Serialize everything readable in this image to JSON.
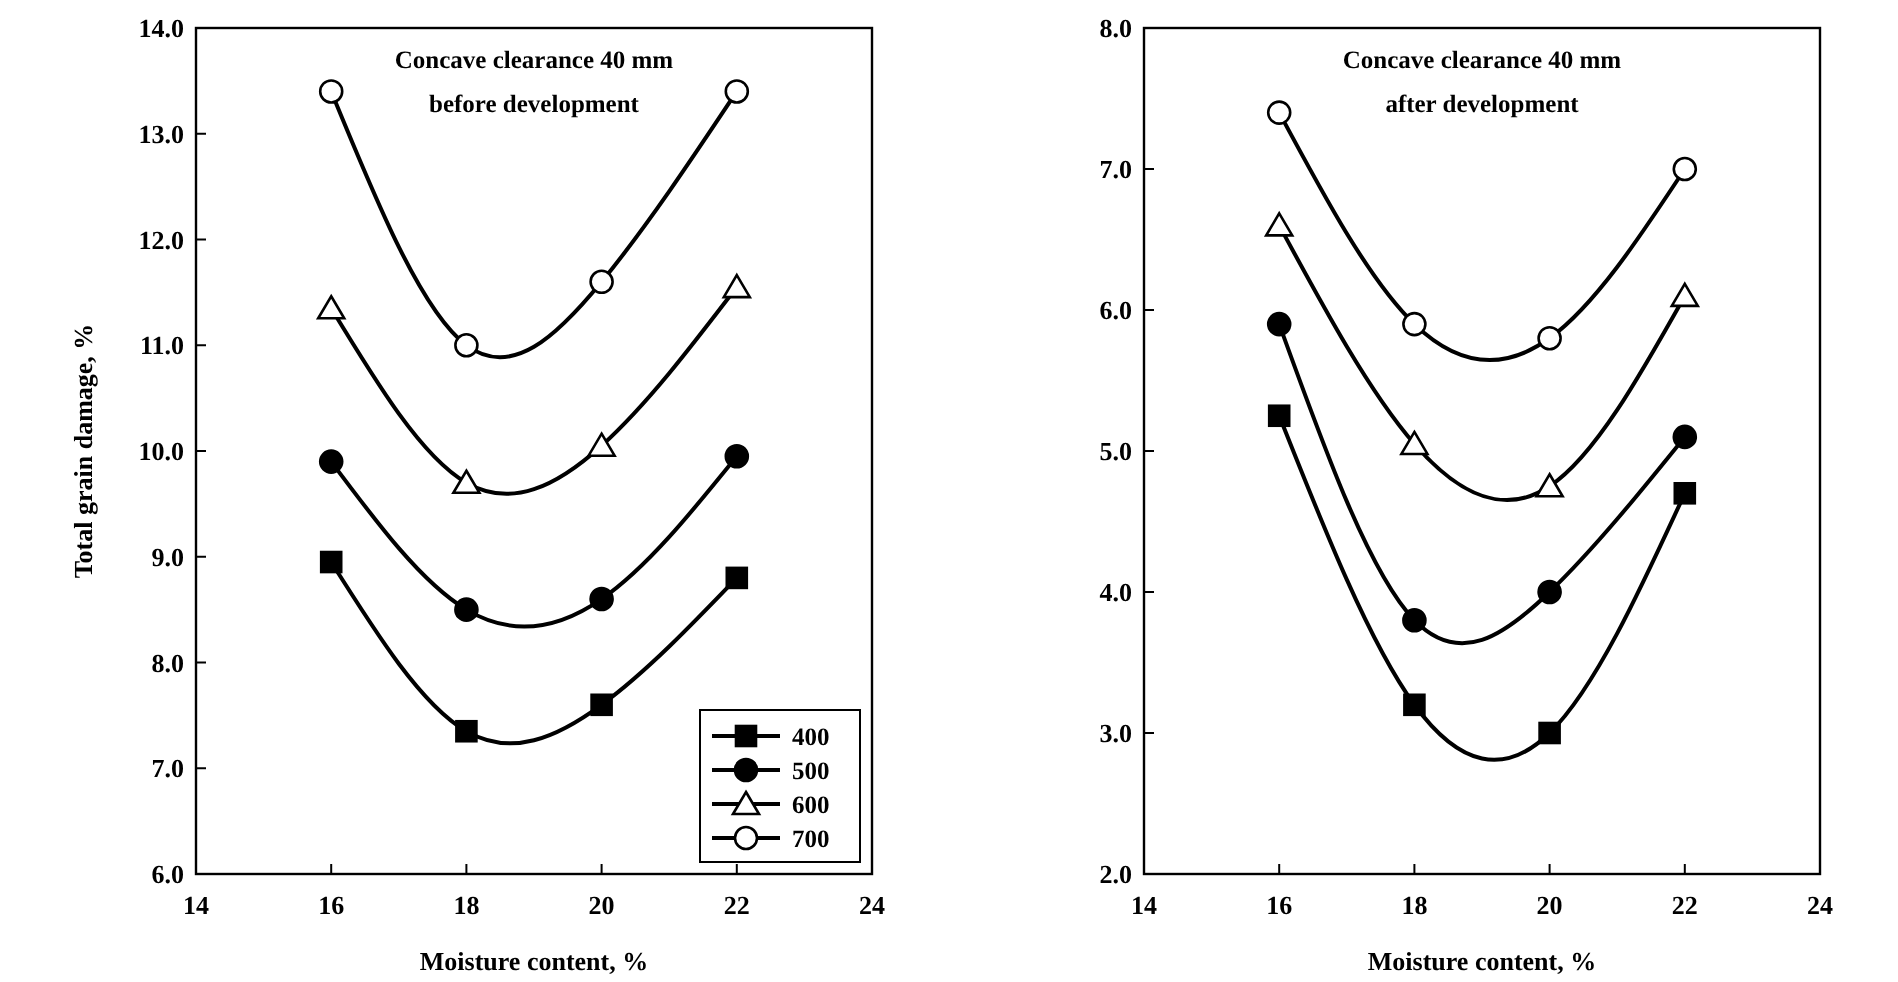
{
  "chart_data": [
    {
      "type": "line",
      "annotations": [
        "Concave clearance 40 mm",
        "before development"
      ],
      "xlabel": "Moisture content, %",
      "ylabel": "Total grain damage, %",
      "x": [
        16,
        18,
        20,
        22
      ],
      "series": [
        {
          "name": "400",
          "color": "#000000",
          "marker": "square",
          "values": [
            8.95,
            7.35,
            7.6,
            8.8
          ]
        },
        {
          "name": "500",
          "color": "#000000",
          "marker": "circle",
          "values": [
            9.9,
            8.5,
            8.6,
            9.95
          ]
        },
        {
          "name": "600",
          "color": "#ffffff",
          "marker": "triangle",
          "values": [
            11.35,
            9.7,
            10.05,
            11.55
          ]
        },
        {
          "name": "700",
          "color": "#ffffff",
          "marker": "circle",
          "values": [
            13.4,
            11.0,
            11.6,
            13.4
          ]
        }
      ],
      "xlim": [
        14,
        24
      ],
      "xticks": [
        14,
        16,
        18,
        20,
        22,
        24
      ],
      "ylim": [
        6,
        14
      ],
      "yticks": [
        {
          "value": 6,
          "label": "6.0"
        },
        {
          "value": 7,
          "label": "7.0"
        },
        {
          "value": 8,
          "label": "8.0"
        },
        {
          "value": 9,
          "label": "9.0"
        },
        {
          "value": 10,
          "label": "10.0"
        },
        {
          "value": 11,
          "label": "11.0"
        },
        {
          "value": 12,
          "label": "12.0"
        },
        {
          "value": 13,
          "label": "13.0"
        },
        {
          "value": 14,
          "label": "14.0"
        }
      ],
      "legend": "bottom right",
      "grid": false
    },
    {
      "type": "line",
      "annotations": [
        "Concave clearance 40 mm",
        "after development"
      ],
      "xlabel": "Moisture content,  %",
      "x": [
        16,
        18,
        20,
        22
      ],
      "series": [
        {
          "color": "#000000",
          "marker": "square",
          "values": [
            5.25,
            3.2,
            3.0,
            4.7
          ]
        },
        {
          "color": "#000000",
          "marker": "circle",
          "values": [
            5.9,
            3.8,
            4.0,
            5.1
          ]
        },
        {
          "color": "#ffffff",
          "marker": "triangle",
          "values": [
            6.6,
            5.05,
            4.75,
            6.1
          ]
        },
        {
          "color": "#ffffff",
          "marker": "circle",
          "values": [
            7.4,
            5.9,
            5.8,
            7.0
          ]
        }
      ],
      "xlim": [
        14,
        24
      ],
      "xticks": [
        14,
        16,
        18,
        20,
        22,
        24
      ],
      "ylim": [
        2,
        8
      ],
      "yticks": [
        {
          "value": 2,
          "label": "2.0"
        },
        {
          "value": 3,
          "label": "3.0"
        },
        {
          "value": 4,
          "label": "4.0"
        },
        {
          "value": 5,
          "label": "5.0"
        },
        {
          "value": 6,
          "label": "6.0"
        },
        {
          "value": 7,
          "label": "7.0"
        },
        {
          "value": 8,
          "label": "8.0"
        }
      ],
      "legend": false,
      "grid": false
    }
  ]
}
